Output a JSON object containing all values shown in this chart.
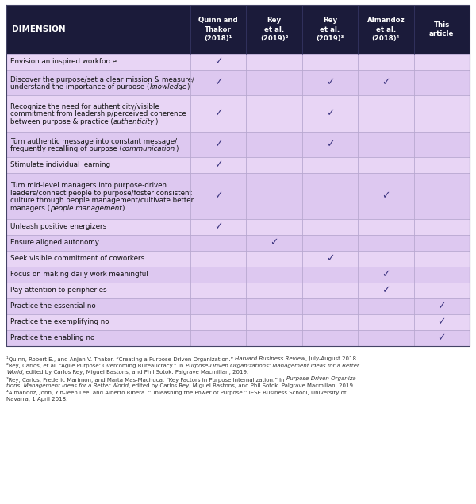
{
  "header_bg": "#1b1b3a",
  "header_text_color": "#ffffff",
  "check_color": "#3d3580",
  "row_bg_even": "#e8d5f5",
  "row_bg_odd": "#ddc8f0",
  "grid_color": "#b8a8d0",
  "footer_text_color": "#333333",
  "col_headers": [
    "Quinn and\nThakor\n(2018)¹",
    "Rey\net al.\n(2019)²",
    "Rey\net al.\n(2019)³",
    "Almandoz\net al.\n(2018)⁴",
    "This\narticle"
  ],
  "rows": [
    {
      "label_parts": [
        [
          "Envision an inspired workforce",
          false
        ]
      ],
      "checks": [
        1,
        0,
        0,
        0,
        0
      ]
    },
    {
      "label_parts": [
        [
          "Discover the purpose/set a clear mission & measure/\nunderstand the importance of purpose (",
          false
        ],
        [
          "knowledge",
          true
        ],
        [
          ")",
          false
        ]
      ],
      "checks": [
        1,
        0,
        1,
        1,
        0
      ]
    },
    {
      "label_parts": [
        [
          "Recognize the need for authenticity/visible\ncommitment from leadership/perceived coherence\nbetween purpose & practice (",
          false
        ],
        [
          "authenticity",
          true
        ],
        [
          ")",
          false
        ]
      ],
      "checks": [
        1,
        0,
        1,
        0,
        0
      ]
    },
    {
      "label_parts": [
        [
          "Turn authentic message into constant message/\nfrequently recalling of purpose (",
          false
        ],
        [
          "communication",
          true
        ],
        [
          ")",
          false
        ]
      ],
      "checks": [
        1,
        0,
        1,
        0,
        0
      ]
    },
    {
      "label_parts": [
        [
          "Stimulate individual learning",
          false
        ]
      ],
      "checks": [
        1,
        0,
        0,
        0,
        0
      ]
    },
    {
      "label_parts": [
        [
          "Turn mid-level managers into purpose-driven\nleaders/connect people to purpose/foster consistent\nculture through people management/cultivate better\nmanagers (",
          false
        ],
        [
          "people management",
          true
        ],
        [
          ")",
          false
        ]
      ],
      "checks": [
        1,
        0,
        0,
        1,
        0
      ]
    },
    {
      "label_parts": [
        [
          "Unleash positive energizers",
          false
        ]
      ],
      "checks": [
        1,
        0,
        0,
        0,
        0
      ]
    },
    {
      "label_parts": [
        [
          "Ensure aligned autonomy",
          false
        ]
      ],
      "checks": [
        0,
        1,
        0,
        0,
        0
      ]
    },
    {
      "label_parts": [
        [
          "Seek visible commitment of coworkers",
          false
        ]
      ],
      "checks": [
        0,
        0,
        1,
        0,
        0
      ]
    },
    {
      "label_parts": [
        [
          "Focus on making daily work meaningful",
          false
        ]
      ],
      "checks": [
        0,
        0,
        0,
        1,
        0
      ]
    },
    {
      "label_parts": [
        [
          "Pay attention to peripheries",
          false
        ]
      ],
      "checks": [
        0,
        0,
        0,
        1,
        0
      ]
    },
    {
      "label_parts": [
        [
          "Practice the essential no",
          false
        ]
      ],
      "checks": [
        0,
        0,
        0,
        0,
        1
      ]
    },
    {
      "label_parts": [
        [
          "Practice the exemplifying no",
          false
        ]
      ],
      "checks": [
        0,
        0,
        0,
        0,
        1
      ]
    },
    {
      "label_parts": [
        [
          "Practice the enabling no",
          false
        ]
      ],
      "checks": [
        0,
        0,
        0,
        0,
        1
      ]
    }
  ],
  "footer_lines": [
    [
      [
        "¹Quinn, Robert E., and Anjan V. Thakor. “Creating a Purpose-Driven Organization.” ",
        false
      ],
      [
        "Harvard Business Review",
        true
      ],
      [
        ", July-August 2018.",
        false
      ]
    ],
    [
      [
        "²Rey, Carlos, et al. “Agile Purpose: Overcoming Bureaucracy.” In ",
        false
      ],
      [
        "Purpose-Driven Organizations: Management Ideas for a Better",
        true
      ],
      [
        "",
        false
      ]
    ],
    [
      [
        "",
        false
      ],
      [
        "World",
        true
      ],
      [
        ", edited by Carlos Rey, Miguel Bastons, and Phil Sotok. Palgrave Macmillan, 2019.",
        false
      ]
    ],
    [
      [
        "³Rey, Carlos, Frederic Marimon, and Marta Mas-Machuca. “Key Factors in Purpose Internalization.” In ",
        false
      ],
      [
        "Purpose-Driven Organiza-",
        true
      ],
      [
        "",
        false
      ]
    ],
    [
      [
        "",
        false
      ],
      [
        "tions: Management Ideas for a Better World",
        true
      ],
      [
        ", edited by Carlos Rey, Miguel Bastons, and Phil Sotok. Palgrave Macmillan, 2019.",
        false
      ]
    ],
    [
      [
        "⁴Almandoz, John, Yih-Teen Lee, and Alberto Ribera. “Unleashing the Power of Purpose.” IESE Business School, University of",
        false
      ],
      [
        "",
        false
      ],
      [
        "",
        false
      ]
    ],
    [
      [
        "Navarra, 1 April 2018.",
        false
      ],
      [
        "",
        false
      ],
      [
        "",
        false
      ]
    ]
  ]
}
